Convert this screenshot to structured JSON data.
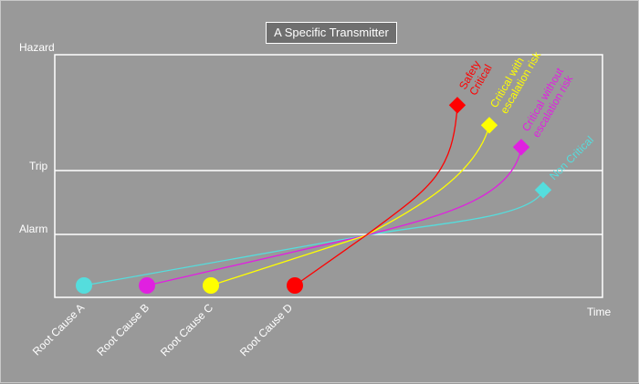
{
  "title": "A Specific Transmitter",
  "levels": {
    "hazard": "Hazard",
    "trip": "Trip",
    "alarm": "Alarm"
  },
  "x_axis_label": "Time",
  "root_causes": [
    "Root Cause A",
    "Root Cause B",
    "Root Cause C",
    "Root Cause D"
  ],
  "outcomes": [
    {
      "line1": "Safety",
      "line2": "Critical",
      "color": "#ff0000"
    },
    {
      "line1": "Critical with",
      "line2": "escalation risk",
      "color": "#ffff00"
    },
    {
      "line1": "Critical without",
      "line2": "escalation risk",
      "color": "#e020e0"
    },
    {
      "line1": "Non Critical",
      "line2": "",
      "color": "#55dddd"
    }
  ],
  "colors": {
    "background": "#999999",
    "grid": "#ffffff",
    "title_box": "#6f6f6f"
  }
}
